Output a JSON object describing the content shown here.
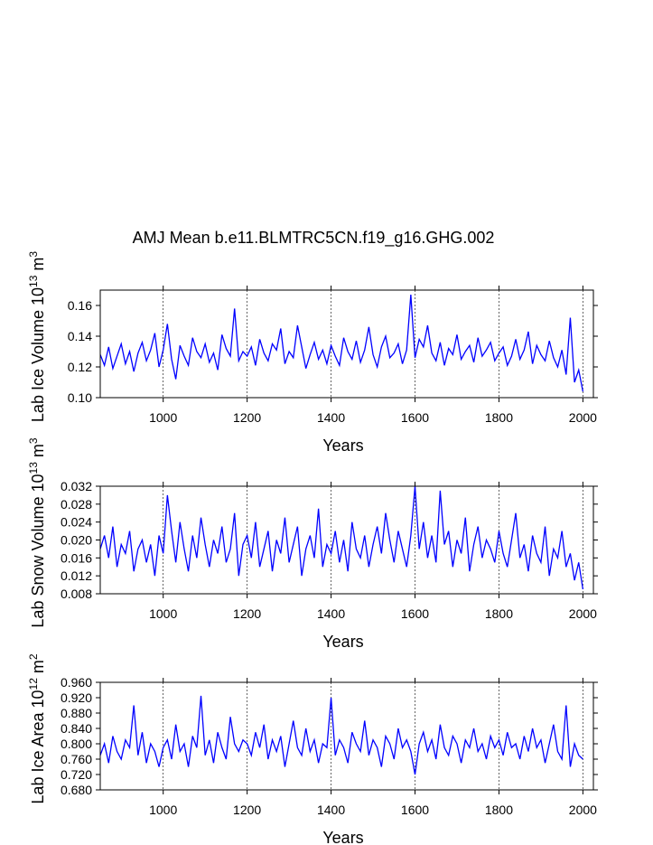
{
  "title": "AMJ Mean b.e11.BLMTRC5CN.f19_g16.GHG.002",
  "chart_data": [
    {
      "type": "line",
      "ylabel": [
        "Lab Ice Volume 10",
        "13",
        " m",
        "3"
      ],
      "xlabel": "Years",
      "color": "#0000ff",
      "xgrid": true,
      "xlim": [
        850,
        2025
      ],
      "xticks": [
        1000,
        1200,
        1400,
        1600,
        1800,
        2000
      ],
      "ylim": [
        0.1,
        0.17
      ],
      "yticks": [
        {
          "value": 0.1,
          "label": "0.10"
        },
        0.12,
        0.14,
        0.16
      ],
      "x": [
        850,
        860,
        870,
        880,
        890,
        900,
        910,
        920,
        930,
        940,
        950,
        960,
        970,
        980,
        990,
        1000,
        1010,
        1020,
        1030,
        1040,
        1050,
        1060,
        1070,
        1080,
        1090,
        1100,
        1110,
        1120,
        1130,
        1140,
        1150,
        1160,
        1170,
        1180,
        1190,
        1200,
        1210,
        1220,
        1230,
        1240,
        1250,
        1260,
        1270,
        1280,
        1290,
        1300,
        1310,
        1320,
        1330,
        1340,
        1350,
        1360,
        1370,
        1380,
        1390,
        1400,
        1410,
        1420,
        1430,
        1440,
        1450,
        1460,
        1470,
        1480,
        1490,
        1500,
        1510,
        1520,
        1530,
        1540,
        1550,
        1560,
        1570,
        1580,
        1590,
        1600,
        1610,
        1620,
        1630,
        1640,
        1650,
        1660,
        1670,
        1680,
        1690,
        1700,
        1710,
        1720,
        1730,
        1740,
        1750,
        1760,
        1770,
        1780,
        1790,
        1800,
        1810,
        1820,
        1830,
        1840,
        1850,
        1860,
        1870,
        1880,
        1890,
        1900,
        1910,
        1920,
        1930,
        1940,
        1950,
        1960,
        1970,
        1980,
        1990,
        2000
      ],
      "values": [
        0.128,
        0.121,
        0.133,
        0.119,
        0.127,
        0.135,
        0.122,
        0.13,
        0.117,
        0.129,
        0.136,
        0.124,
        0.131,
        0.142,
        0.12,
        0.131,
        0.148,
        0.125,
        0.112,
        0.134,
        0.127,
        0.121,
        0.139,
        0.13,
        0.126,
        0.135,
        0.123,
        0.129,
        0.118,
        0.141,
        0.132,
        0.127,
        0.158,
        0.124,
        0.13,
        0.127,
        0.133,
        0.121,
        0.138,
        0.129,
        0.124,
        0.135,
        0.131,
        0.145,
        0.122,
        0.13,
        0.126,
        0.147,
        0.133,
        0.119,
        0.128,
        0.136,
        0.125,
        0.131,
        0.122,
        0.134,
        0.127,
        0.121,
        0.139,
        0.13,
        0.125,
        0.137,
        0.123,
        0.131,
        0.146,
        0.128,
        0.12,
        0.133,
        0.14,
        0.126,
        0.129,
        0.135,
        0.122,
        0.131,
        0.167,
        0.126,
        0.138,
        0.133,
        0.147,
        0.129,
        0.124,
        0.136,
        0.121,
        0.132,
        0.128,
        0.141,
        0.125,
        0.13,
        0.134,
        0.123,
        0.139,
        0.127,
        0.131,
        0.136,
        0.124,
        0.129,
        0.133,
        0.121,
        0.127,
        0.138,
        0.125,
        0.131,
        0.143,
        0.122,
        0.134,
        0.128,
        0.124,
        0.137,
        0.126,
        0.12,
        0.131,
        0.115,
        0.152,
        0.11,
        0.118,
        0.104
      ]
    },
    {
      "type": "line",
      "ylabel": [
        "Lab Snow Volume 10",
        "13",
        " m",
        "3"
      ],
      "xlabel": "Years",
      "color": "#0000ff",
      "xgrid": true,
      "xlim": [
        850,
        2025
      ],
      "xticks": [
        1000,
        1200,
        1400,
        1600,
        1800,
        2000
      ],
      "ylim": [
        0.008,
        0.032
      ],
      "yticks": [
        0.008,
        0.012,
        0.016,
        {
          "value": 0.02,
          "label": "0.020"
        },
        0.024,
        0.028,
        0.032
      ],
      "x": [
        850,
        860,
        870,
        880,
        890,
        900,
        910,
        920,
        930,
        940,
        950,
        960,
        970,
        980,
        990,
        1000,
        1010,
        1020,
        1030,
        1040,
        1050,
        1060,
        1070,
        1080,
        1090,
        1100,
        1110,
        1120,
        1130,
        1140,
        1150,
        1160,
        1170,
        1180,
        1190,
        1200,
        1210,
        1220,
        1230,
        1240,
        1250,
        1260,
        1270,
        1280,
        1290,
        1300,
        1310,
        1320,
        1330,
        1340,
        1350,
        1360,
        1370,
        1380,
        1390,
        1400,
        1410,
        1420,
        1430,
        1440,
        1450,
        1460,
        1470,
        1480,
        1490,
        1500,
        1510,
        1520,
        1530,
        1540,
        1550,
        1560,
        1570,
        1580,
        1590,
        1600,
        1610,
        1620,
        1630,
        1640,
        1650,
        1660,
        1670,
        1680,
        1690,
        1700,
        1710,
        1720,
        1730,
        1740,
        1750,
        1760,
        1770,
        1780,
        1790,
        1800,
        1810,
        1820,
        1830,
        1840,
        1850,
        1860,
        1870,
        1880,
        1890,
        1900,
        1910,
        1920,
        1930,
        1940,
        1950,
        1960,
        1970,
        1980,
        1990,
        2000
      ],
      "values": [
        0.018,
        0.021,
        0.016,
        0.023,
        0.014,
        0.019,
        0.017,
        0.022,
        0.013,
        0.018,
        0.02,
        0.015,
        0.019,
        0.012,
        0.021,
        0.017,
        0.03,
        0.022,
        0.015,
        0.024,
        0.018,
        0.013,
        0.021,
        0.016,
        0.025,
        0.019,
        0.014,
        0.02,
        0.017,
        0.023,
        0.015,
        0.018,
        0.026,
        0.012,
        0.019,
        0.021,
        0.016,
        0.024,
        0.014,
        0.018,
        0.022,
        0.013,
        0.02,
        0.017,
        0.025,
        0.015,
        0.019,
        0.023,
        0.012,
        0.018,
        0.021,
        0.016,
        0.027,
        0.014,
        0.019,
        0.017,
        0.022,
        0.015,
        0.02,
        0.013,
        0.024,
        0.018,
        0.016,
        0.021,
        0.014,
        0.019,
        0.023,
        0.017,
        0.026,
        0.02,
        0.015,
        0.022,
        0.018,
        0.014,
        0.021,
        0.032,
        0.018,
        0.024,
        0.016,
        0.021,
        0.015,
        0.031,
        0.019,
        0.022,
        0.014,
        0.02,
        0.017,
        0.025,
        0.013,
        0.019,
        0.023,
        0.016,
        0.02,
        0.018,
        0.015,
        0.022,
        0.017,
        0.014,
        0.02,
        0.026,
        0.016,
        0.019,
        0.013,
        0.021,
        0.017,
        0.015,
        0.023,
        0.012,
        0.018,
        0.016,
        0.022,
        0.014,
        0.017,
        0.011,
        0.015,
        0.009
      ]
    },
    {
      "type": "line",
      "ylabel": [
        "Lab Ice Area 10",
        "12",
        " m",
        "2"
      ],
      "xlabel": "Years",
      "color": "#0000ff",
      "xgrid": true,
      "xlim": [
        850,
        2025
      ],
      "xticks": [
        1000,
        1200,
        1400,
        1600,
        1800,
        2000
      ],
      "ylim": [
        0.68,
        0.96
      ],
      "yticks": [
        {
          "value": 0.68,
          "label": "0.680"
        },
        {
          "value": 0.72,
          "label": "0.720"
        },
        {
          "value": 0.76,
          "label": "0.760"
        },
        {
          "value": 0.8,
          "label": "0.800"
        },
        {
          "value": 0.84,
          "label": "0.840"
        },
        {
          "value": 0.88,
          "label": "0.880"
        },
        {
          "value": 0.92,
          "label": "0.920"
        },
        {
          "value": 0.96,
          "label": "0.960"
        }
      ],
      "x": [
        850,
        860,
        870,
        880,
        890,
        900,
        910,
        920,
        930,
        940,
        950,
        960,
        970,
        980,
        990,
        1000,
        1010,
        1020,
        1030,
        1040,
        1050,
        1060,
        1070,
        1080,
        1090,
        1100,
        1110,
        1120,
        1130,
        1140,
        1150,
        1160,
        1170,
        1180,
        1190,
        1200,
        1210,
        1220,
        1230,
        1240,
        1250,
        1260,
        1270,
        1280,
        1290,
        1300,
        1310,
        1320,
        1330,
        1340,
        1350,
        1360,
        1370,
        1380,
        1390,
        1400,
        1410,
        1420,
        1430,
        1440,
        1450,
        1460,
        1470,
        1480,
        1490,
        1500,
        1510,
        1520,
        1530,
        1540,
        1550,
        1560,
        1570,
        1580,
        1590,
        1600,
        1610,
        1620,
        1630,
        1640,
        1650,
        1660,
        1670,
        1680,
        1690,
        1700,
        1710,
        1720,
        1730,
        1740,
        1750,
        1760,
        1770,
        1780,
        1790,
        1800,
        1810,
        1820,
        1830,
        1840,
        1850,
        1860,
        1870,
        1880,
        1890,
        1900,
        1910,
        1920,
        1930,
        1940,
        1950,
        1960,
        1970,
        1980,
        1990,
        2000
      ],
      "values": [
        0.77,
        0.8,
        0.75,
        0.82,
        0.78,
        0.76,
        0.81,
        0.79,
        0.9,
        0.77,
        0.83,
        0.75,
        0.8,
        0.78,
        0.74,
        0.79,
        0.81,
        0.76,
        0.85,
        0.78,
        0.8,
        0.74,
        0.82,
        0.79,
        0.925,
        0.77,
        0.81,
        0.75,
        0.83,
        0.79,
        0.76,
        0.87,
        0.8,
        0.78,
        0.81,
        0.8,
        0.77,
        0.83,
        0.79,
        0.85,
        0.76,
        0.81,
        0.78,
        0.82,
        0.74,
        0.8,
        0.86,
        0.79,
        0.77,
        0.84,
        0.78,
        0.81,
        0.75,
        0.8,
        0.79,
        0.92,
        0.77,
        0.81,
        0.79,
        0.75,
        0.83,
        0.8,
        0.78,
        0.86,
        0.77,
        0.81,
        0.79,
        0.74,
        0.82,
        0.8,
        0.76,
        0.84,
        0.79,
        0.81,
        0.78,
        0.72,
        0.8,
        0.83,
        0.78,
        0.81,
        0.76,
        0.85,
        0.79,
        0.77,
        0.82,
        0.8,
        0.75,
        0.81,
        0.79,
        0.84,
        0.78,
        0.8,
        0.76,
        0.82,
        0.79,
        0.81,
        0.77,
        0.83,
        0.79,
        0.8,
        0.76,
        0.82,
        0.78,
        0.84,
        0.79,
        0.81,
        0.75,
        0.8,
        0.85,
        0.78,
        0.76,
        0.9,
        0.74,
        0.8,
        0.77,
        0.76
      ]
    }
  ]
}
